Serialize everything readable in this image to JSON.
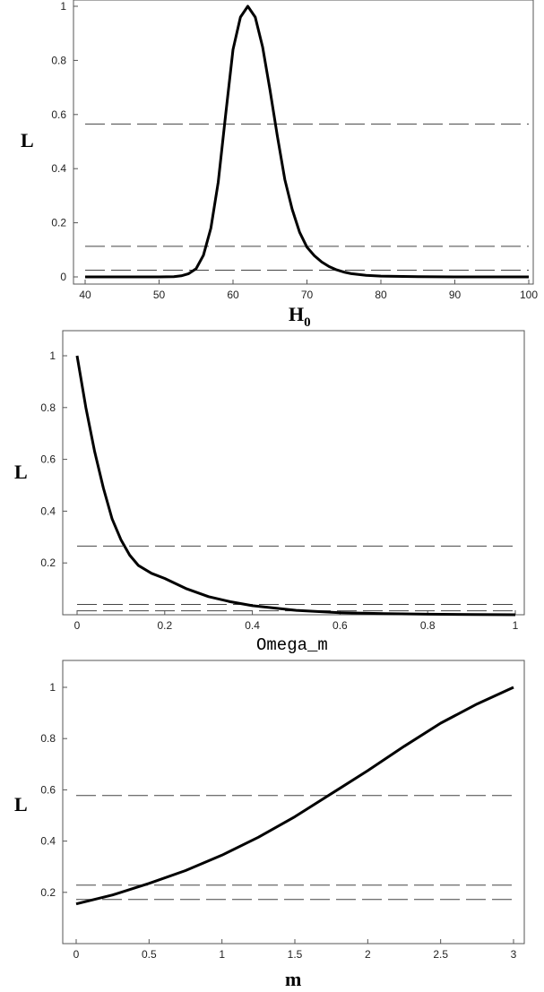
{
  "chart_data": [
    {
      "type": "line",
      "xlabel": "H",
      "xlabel_subscript": "0",
      "ylabel": "L",
      "xlim": [
        40,
        100
      ],
      "ylim": [
        0,
        1
      ],
      "xticks": [
        40,
        50,
        60,
        70,
        80,
        90,
        100
      ],
      "yticks": [
        0,
        0.2,
        0.4,
        0.6,
        0.8,
        1
      ],
      "xtick_labels": [
        "40",
        "50",
        "60",
        "70",
        "80",
        "90",
        "100"
      ],
      "ytick_labels": [
        "0",
        "0.2",
        "0.4",
        "0.6",
        "0.8",
        "1"
      ],
      "hlines": [
        0.565,
        0.113,
        0.025
      ],
      "series": [
        {
          "x": [
            40,
            45,
            50,
            52,
            53,
            54,
            55,
            56,
            57,
            58,
            59,
            60,
            61,
            62,
            63,
            64,
            65,
            66,
            67,
            68,
            69,
            70,
            71,
            72,
            73,
            74,
            75,
            76,
            78,
            80,
            85,
            90,
            100
          ],
          "y": [
            0,
            0,
            0,
            0.001,
            0.004,
            0.012,
            0.03,
            0.08,
            0.18,
            0.35,
            0.6,
            0.84,
            0.96,
            1.0,
            0.96,
            0.85,
            0.69,
            0.52,
            0.36,
            0.25,
            0.165,
            0.11,
            0.078,
            0.055,
            0.038,
            0.026,
            0.018,
            0.012,
            0.006,
            0.003,
            0.001,
            0,
            0
          ]
        }
      ]
    },
    {
      "type": "line",
      "xlabel": "Omega_m",
      "ylabel": "L",
      "xlim": [
        0,
        1
      ],
      "ylim": [
        0,
        1
      ],
      "xticks": [
        0,
        0.2,
        0.4,
        0.6,
        0.8,
        1
      ],
      "yticks": [
        0.2,
        0.4,
        0.6,
        0.8,
        1
      ],
      "xtick_labels": [
        "0",
        "0.2",
        "0.4",
        "0.6",
        "0.8",
        "1"
      ],
      "ytick_labels": [
        "0.2",
        "0.4",
        "0.6",
        "0.8",
        "1"
      ],
      "hlines": [
        0.265,
        0.04,
        0.015
      ],
      "series": [
        {
          "x": [
            0,
            0.02,
            0.04,
            0.06,
            0.08,
            0.1,
            0.12,
            0.14,
            0.17,
            0.2,
            0.25,
            0.3,
            0.35,
            0.4,
            0.5,
            0.6,
            0.7,
            0.8,
            0.9,
            1.0
          ],
          "y": [
            1.0,
            0.8,
            0.63,
            0.49,
            0.37,
            0.29,
            0.23,
            0.19,
            0.16,
            0.14,
            0.1,
            0.07,
            0.05,
            0.035,
            0.017,
            0.008,
            0.004,
            0.002,
            0.001,
            0.0
          ]
        }
      ]
    },
    {
      "type": "line",
      "xlabel": "m",
      "ylabel": "L",
      "xlim": [
        0,
        3
      ],
      "ylim": [
        0,
        1
      ],
      "xticks": [
        0,
        0.5,
        1,
        1.5,
        2,
        2.5,
        3
      ],
      "yticks": [
        0.2,
        0.4,
        0.6,
        0.8,
        1
      ],
      "xtick_labels": [
        "0",
        "0.5",
        "1",
        "1.5",
        "2",
        "2.5",
        "3"
      ],
      "ytick_labels": [
        "0.2",
        "0.4",
        "0.6",
        "0.8",
        "1"
      ],
      "hlines": [
        0.578,
        0.228,
        0.172
      ],
      "series": [
        {
          "x": [
            0,
            0.25,
            0.5,
            0.75,
            1,
            1.25,
            1.5,
            1.75,
            2,
            2.25,
            2.5,
            2.75,
            3
          ],
          "y": [
            0.155,
            0.19,
            0.235,
            0.285,
            0.345,
            0.415,
            0.495,
            0.585,
            0.675,
            0.77,
            0.86,
            0.935,
            1.0
          ]
        }
      ]
    }
  ]
}
